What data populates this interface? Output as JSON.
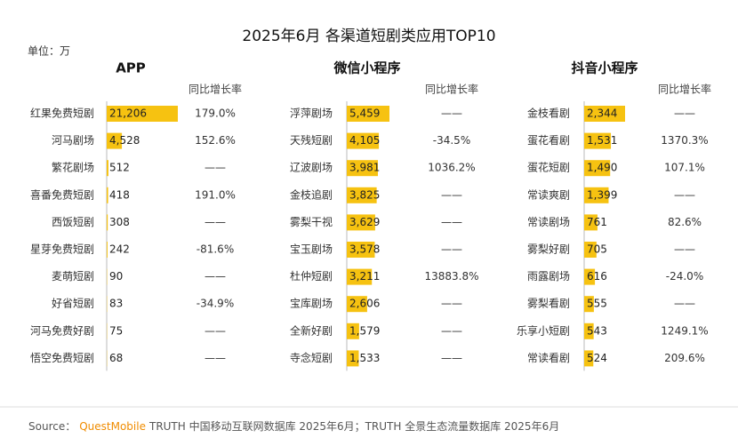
{
  "title": "2025年6月 各渠道短剧类应用TOP10",
  "unit": "单位：万",
  "source_label": "Source：",
  "source_brand": "QuestMobile",
  "source_text": "TRUTH 中国移动互联网数据库 2025年6月；TRUTH 全景生态流量数据库 2025年6月",
  "chart_data": [
    {
      "type": "bar",
      "title": "APP",
      "color": "#f6c211",
      "growth_header": "同比增长率",
      "categories": [
        "红果免费短剧",
        "河马剧场",
        "繁花剧场",
        "喜番免费短剧",
        "西饭短剧",
        "星芽免费短剧",
        "麦萌短剧",
        "好省短剧",
        "河马免费好剧",
        "悟空免费短剧"
      ],
      "values": [
        21206,
        4528,
        512,
        418,
        308,
        242,
        90,
        83,
        75,
        68
      ],
      "value_labels": [
        "21,206",
        "4,528",
        "512",
        "418",
        "308",
        "242",
        "90",
        "83",
        "75",
        "68"
      ],
      "growth": [
        179.0,
        152.6,
        null,
        191.0,
        null,
        -81.6,
        null,
        -34.9,
        null,
        null
      ],
      "growth_labels": [
        "179.0%",
        "152.6%",
        "——",
        "191.0%",
        "——",
        "-81.6%",
        "——",
        "-34.9%",
        "——",
        "——"
      ]
    },
    {
      "type": "bar",
      "title": "微信小程序",
      "color": "#f6c211",
      "growth_header": "同比增长率",
      "categories": [
        "浮萍剧场",
        "天残短剧",
        "辽波剧场",
        "金枝追剧",
        "雾梨干视",
        "宝玉剧场",
        "杜仲短剧",
        "宝库剧场",
        "全新好剧",
        "寺念短剧"
      ],
      "values": [
        5459,
        4105,
        3981,
        3825,
        3629,
        3578,
        3211,
        2606,
        1579,
        1533
      ],
      "value_labels": [
        "5,459",
        "4,105",
        "3,981",
        "3,825",
        "3,629",
        "3,578",
        "3,211",
        "2,606",
        "1,579",
        "1,533"
      ],
      "growth": [
        null,
        -34.5,
        1036.2,
        null,
        null,
        null,
        13883.8,
        null,
        null,
        null
      ],
      "growth_labels": [
        "——",
        "-34.5%",
        "1036.2%",
        "——",
        "——",
        "——",
        "13883.8%",
        "——",
        "——",
        "——"
      ]
    },
    {
      "type": "bar",
      "title": "抖音小程序",
      "color": "#f6c211",
      "growth_header": "同比增长率",
      "categories": [
        "金枝看剧",
        "蛋花看剧",
        "蛋花短剧",
        "常读爽剧",
        "常读剧场",
        "雾梨好剧",
        "雨露剧场",
        "雾梨看剧",
        "乐享小短剧",
        "常读看剧"
      ],
      "values": [
        2344,
        1531,
        1490,
        1399,
        761,
        705,
        616,
        555,
        543,
        524
      ],
      "value_labels": [
        "2,344",
        "1,531",
        "1,490",
        "1,399",
        "761",
        "705",
        "616",
        "555",
        "543",
        "524"
      ],
      "growth": [
        null,
        1370.3,
        107.1,
        null,
        82.6,
        null,
        -24.0,
        null,
        1249.1,
        209.6
      ],
      "growth_labels": [
        "——",
        "1370.3%",
        "107.1%",
        "——",
        "82.6%",
        "——",
        "-24.0%",
        "——",
        "1249.1%",
        "209.6%"
      ]
    }
  ]
}
